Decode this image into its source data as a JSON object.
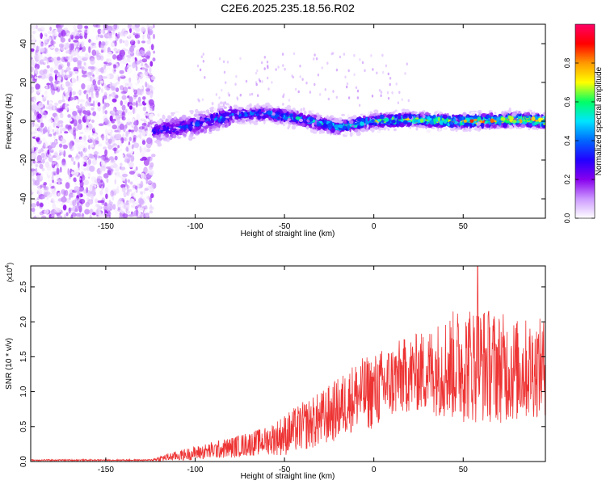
{
  "title": "C2E6.2025.235.18.56.R02",
  "colors": {
    "background": "#ffffff",
    "axis": "#000000",
    "snr_line": "#ee3333",
    "colorbar_stops": [
      "#ffffff",
      "#cc99ff",
      "#8800ee",
      "#2200ff",
      "#0066ff",
      "#00e5ff",
      "#00ff66",
      "#ffff00",
      "#ff9900",
      "#ff0000",
      "#ff0066"
    ]
  },
  "chart_data": [
    {
      "type": "heatmap",
      "name": "spectrogram",
      "xlabel": "Height of straight line (km)",
      "ylabel": "Frequency (Hz)",
      "xlim": [
        -192,
        96
      ],
      "ylim": [
        -50,
        50
      ],
      "xticks": [
        -150,
        -100,
        -50,
        0,
        50
      ],
      "xtick_labels": [
        "-150",
        "-100",
        "-50",
        "0",
        "50"
      ],
      "yticks": [
        -40,
        -20,
        0,
        20,
        40
      ],
      "ytick_labels": [
        "-40",
        "-20",
        "0",
        "20",
        "40"
      ],
      "noise_region_x": [
        -192,
        -123
      ],
      "band_start_x": -123,
      "band_center_freq": [
        {
          "x": -123,
          "f": -5
        },
        {
          "x": -100,
          "f": -2
        },
        {
          "x": -80,
          "f": 3
        },
        {
          "x": -60,
          "f": 4
        },
        {
          "x": -40,
          "f": 1
        },
        {
          "x": -20,
          "f": -3
        },
        {
          "x": 0,
          "f": 0
        },
        {
          "x": 20,
          "f": 1
        },
        {
          "x": 40,
          "f": 0
        },
        {
          "x": 60,
          "f": 0
        },
        {
          "x": 80,
          "f": 1
        },
        {
          "x": 96,
          "f": 0
        }
      ],
      "colorbar": {
        "label": "Normalized spectral amplitude",
        "range": [
          0,
          1
        ],
        "ticks": [
          0.0,
          0.2,
          0.4,
          0.6,
          0.8
        ],
        "tick_labels": [
          "0.0",
          "0.2",
          "0.4",
          "0.6",
          "0.8"
        ]
      }
    },
    {
      "type": "line",
      "name": "snr",
      "xlabel": "Height of straight line (km)",
      "ylabel": "SNR (10 * v/v)",
      "y_multiplier": "(x10",
      "y_multiplier_exp": "4",
      "y_multiplier_close": ")",
      "xlim": [
        -192,
        96
      ],
      "ylim": [
        0,
        2.8
      ],
      "xticks": [
        -150,
        -100,
        -50,
        0,
        50
      ],
      "xtick_labels": [
        "-150",
        "-100",
        "-50",
        "0",
        "50"
      ],
      "yticks": [
        0.0,
        0.5,
        1.0,
        1.5,
        2.0,
        2.5
      ],
      "ytick_labels": [
        "0.0",
        "0.5",
        "1.0",
        "1.5",
        "2.0",
        "2.5"
      ],
      "series": [
        {
          "name": "SNR",
          "envelope": [
            {
              "x": -192,
              "mean": 0.02,
              "amp": 0.01
            },
            {
              "x": -125,
              "mean": 0.02,
              "amp": 0.01
            },
            {
              "x": -118,
              "mean": 0.05,
              "amp": 0.05
            },
            {
              "x": -100,
              "mean": 0.12,
              "amp": 0.1
            },
            {
              "x": -80,
              "mean": 0.2,
              "amp": 0.15
            },
            {
              "x": -60,
              "mean": 0.3,
              "amp": 0.2
            },
            {
              "x": -50,
              "mean": 0.38,
              "amp": 0.3
            },
            {
              "x": -40,
              "mean": 0.5,
              "amp": 0.35
            },
            {
              "x": -30,
              "mean": 0.6,
              "amp": 0.4
            },
            {
              "x": -20,
              "mean": 0.75,
              "amp": 0.45
            },
            {
              "x": -10,
              "mean": 0.95,
              "amp": 0.5
            },
            {
              "x": 0,
              "mean": 1.0,
              "amp": 0.55
            },
            {
              "x": 10,
              "mean": 1.15,
              "amp": 0.55
            },
            {
              "x": 20,
              "mean": 1.25,
              "amp": 0.55
            },
            {
              "x": 30,
              "mean": 1.3,
              "amp": 0.6
            },
            {
              "x": 40,
              "mean": 1.35,
              "amp": 0.75
            },
            {
              "x": 50,
              "mean": 1.4,
              "amp": 0.85
            },
            {
              "x": 60,
              "mean": 1.4,
              "amp": 0.85
            },
            {
              "x": 70,
              "mean": 1.35,
              "amp": 0.8
            },
            {
              "x": 80,
              "mean": 1.3,
              "amp": 0.75
            },
            {
              "x": 96,
              "mean": 1.35,
              "amp": 0.7
            }
          ],
          "peak_value": 2.8,
          "peak_x": 58
        }
      ]
    }
  ]
}
